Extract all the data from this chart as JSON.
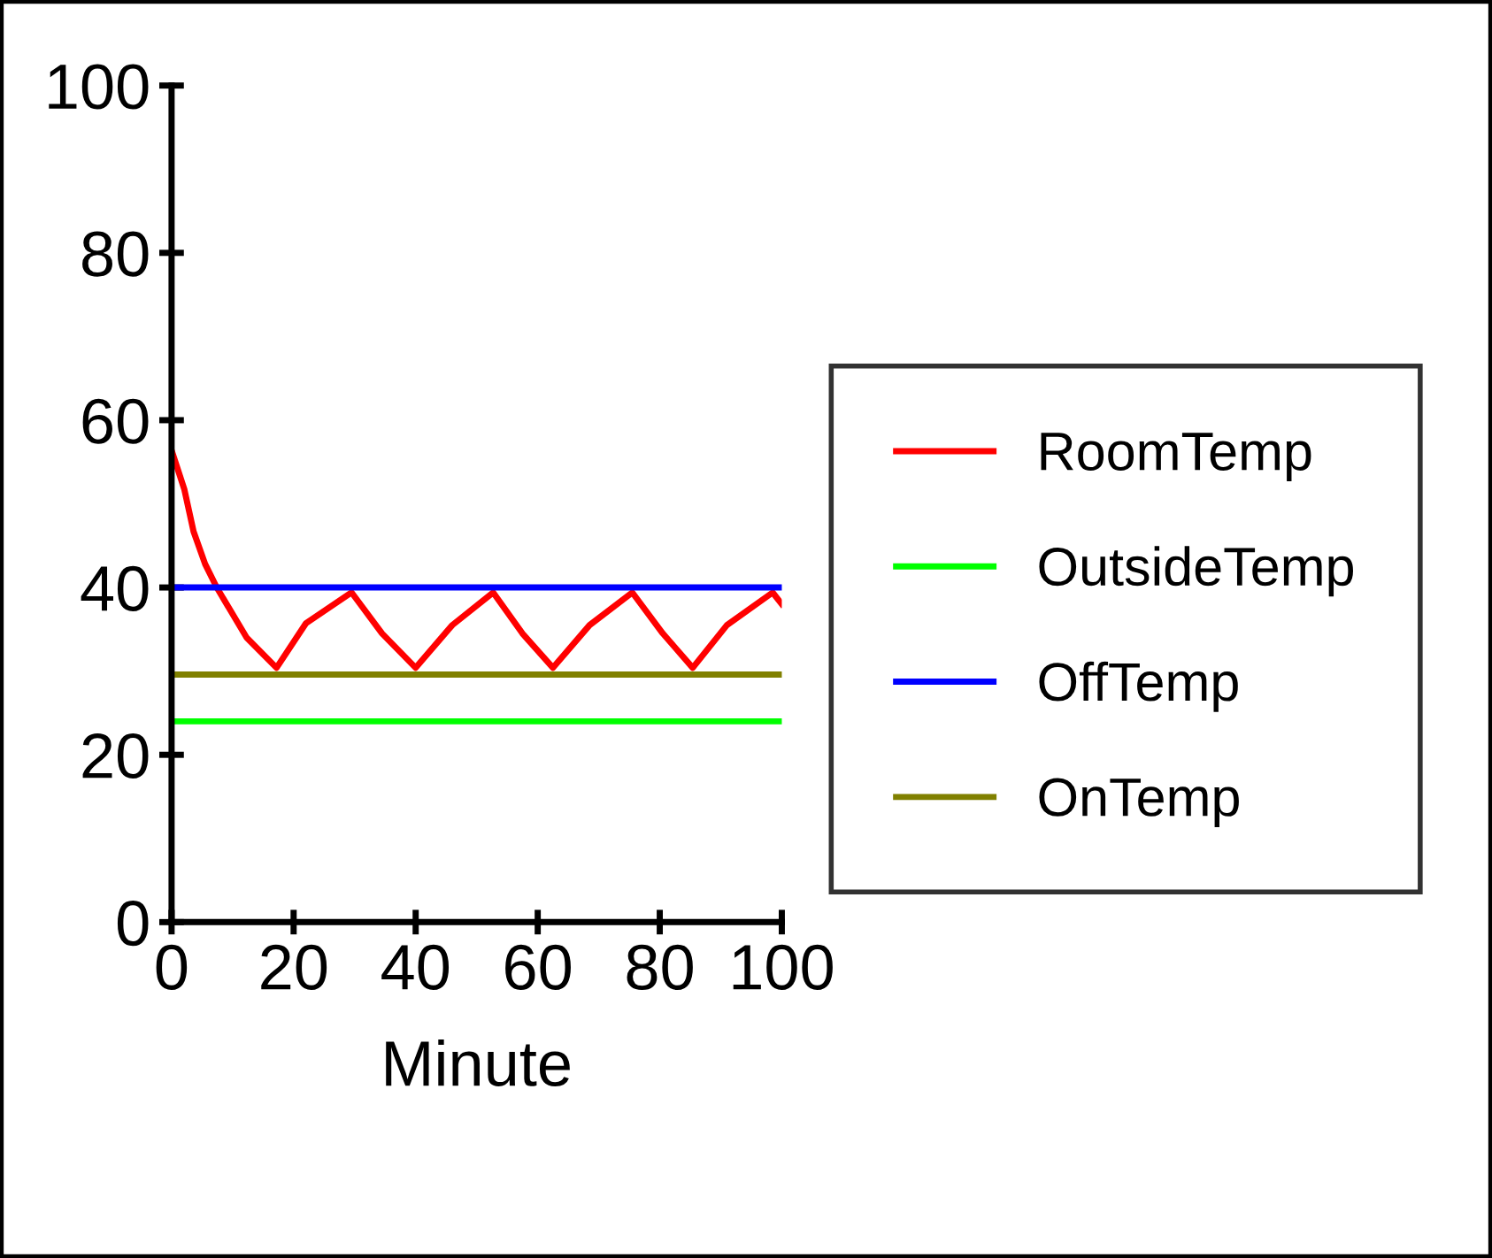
{
  "chart_data": {
    "type": "line",
    "xlabel": "Minute",
    "x": [
      0,
      2.1,
      3.6,
      5.5,
      7.4,
      12.3,
      17.2,
      22,
      29.5,
      34.5,
      40,
      46,
      52.7,
      57.5,
      62.5,
      68.5,
      75.5,
      80.5,
      85.4,
      91,
      98.5,
      100
    ],
    "series": [
      {
        "name": "RoomTemp",
        "color": "#ff0000",
        "values": [
          56.4,
          51.7,
          46.7,
          42.8,
          40,
          34,
          30.4,
          35.7,
          39.4,
          34.5,
          30.4,
          35.5,
          39.4,
          34.5,
          30.4,
          35.5,
          39.4,
          34.5,
          30.4,
          35.5,
          39.4,
          38
        ]
      }
    ],
    "ref_lines": [
      {
        "axis": "y",
        "value": 24,
        "label": "OutsideTemp",
        "color": "#00ff00",
        "line_style": "solid"
      },
      {
        "axis": "y",
        "value": 40,
        "label": "OffTemp",
        "color": "#0000ff",
        "line_style": "solid"
      },
      {
        "axis": "y",
        "value": 29.6,
        "label": "OnTemp",
        "color": "#808000",
        "line_style": "solid"
      }
    ],
    "xlim": [
      0,
      100
    ],
    "xticks": [
      0,
      20,
      40,
      60,
      80,
      100
    ],
    "ylim": [
      0,
      100
    ],
    "yticks": [
      0,
      20,
      40,
      60,
      80,
      100
    ],
    "grid": false,
    "legend": "right",
    "marker": "none",
    "line_style": "solid"
  }
}
